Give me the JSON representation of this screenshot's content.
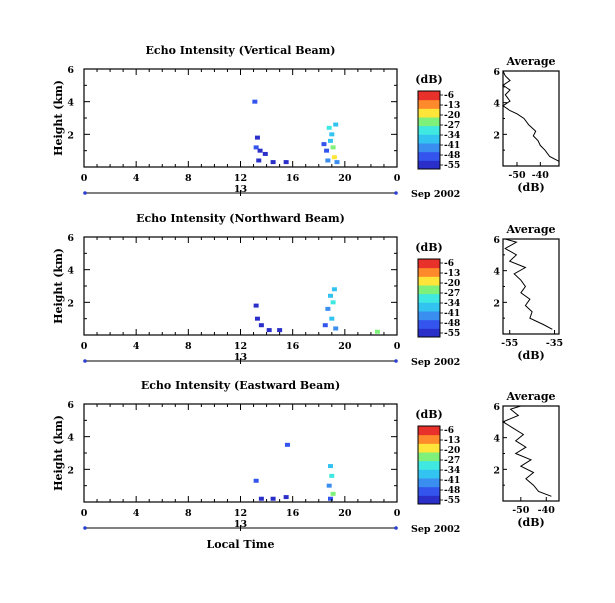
{
  "chart_data": [
    {
      "type": "heatmap",
      "title": "Echo Intensity (Vertical Beam)",
      "ylabel": "Height (km)",
      "xlabel": "",
      "xticks": [
        "0",
        "4",
        "8",
        "12",
        "16",
        "20",
        "0"
      ],
      "yticks": [
        "2",
        "4",
        "6"
      ],
      "ylim": [
        0,
        6
      ],
      "xlim": [
        0,
        24
      ],
      "date_tick": "13",
      "date_label": "Sep 2002",
      "colorbar_label": "(dB)",
      "colorbar_ticks": [
        "-6",
        "-13",
        "-20",
        "-27",
        "-34",
        "-41",
        "-48",
        "-55"
      ],
      "avg_title": "Average",
      "avg_xlabel": "(dB)",
      "avg_xticks": [
        "-50",
        "-40"
      ],
      "avg_yticks": [
        "2",
        "4",
        "6"
      ],
      "avg_xlim": [
        -56,
        -32
      ],
      "avg_profile": [
        [
          -32,
          0.3
        ],
        [
          -36,
          0.6
        ],
        [
          -38,
          1.0
        ],
        [
          -40,
          1.3
        ],
        [
          -41,
          1.6
        ],
        [
          -43,
          1.9
        ],
        [
          -42,
          2.2
        ],
        [
          -45,
          2.6
        ],
        [
          -47,
          3.0
        ],
        [
          -50,
          3.3
        ],
        [
          -53,
          3.5
        ],
        [
          -56,
          3.8
        ],
        [
          -53,
          4.1
        ],
        [
          -55,
          4.5
        ],
        [
          -53,
          4.8
        ],
        [
          -56,
          5.1
        ],
        [
          -53,
          5.4
        ],
        [
          -55,
          5.7
        ],
        [
          -56,
          6.0
        ]
      ],
      "echoes": [
        {
          "t": 13.2,
          "h": 1.2,
          "v": -48
        },
        {
          "t": 13.5,
          "h": 1.0,
          "v": -50
        },
        {
          "t": 13.9,
          "h": 0.8,
          "v": -52
        },
        {
          "t": 13.4,
          "h": 0.4,
          "v": -55
        },
        {
          "t": 14.5,
          "h": 0.3,
          "v": -50
        },
        {
          "t": 15.5,
          "h": 0.3,
          "v": -55
        },
        {
          "t": 13.1,
          "h": 4.0,
          "v": -48
        },
        {
          "t": 13.3,
          "h": 1.8,
          "v": -55
        },
        {
          "t": 18.8,
          "h": 2.4,
          "v": -30
        },
        {
          "t": 19.0,
          "h": 2.0,
          "v": -34
        },
        {
          "t": 18.9,
          "h": 1.6,
          "v": -38
        },
        {
          "t": 19.1,
          "h": 1.2,
          "v": -27
        },
        {
          "t": 18.6,
          "h": 1.0,
          "v": -45
        },
        {
          "t": 19.2,
          "h": 0.6,
          "v": -20
        },
        {
          "t": 18.7,
          "h": 0.4,
          "v": -41
        },
        {
          "t": 18.4,
          "h": 1.4,
          "v": -48
        },
        {
          "t": 19.3,
          "h": 2.6,
          "v": -34
        },
        {
          "t": 19.4,
          "h": 0.3,
          "v": -41
        }
      ]
    },
    {
      "type": "heatmap",
      "title": "Echo Intensity (Northward Beam)",
      "ylabel": "Height (km)",
      "xlabel": "",
      "xticks": [
        "0",
        "4",
        "8",
        "12",
        "16",
        "20",
        "0"
      ],
      "yticks": [
        "2",
        "4",
        "6"
      ],
      "ylim": [
        0,
        6
      ],
      "xlim": [
        0,
        24
      ],
      "date_tick": "13",
      "date_label": "Sep 2002",
      "colorbar_label": "(dB)",
      "colorbar_ticks": [
        "-6",
        "-13",
        "-20",
        "-27",
        "-34",
        "-41",
        "-48",
        "-55"
      ],
      "avg_title": "Average",
      "avg_xlabel": "(dB)",
      "avg_xticks": [
        "-55",
        "-35"
      ],
      "avg_yticks": [
        "2",
        "4",
        "6"
      ],
      "avg_xlim": [
        -58,
        -33
      ],
      "avg_profile": [
        [
          -36,
          0.3
        ],
        [
          -40,
          0.6
        ],
        [
          -46,
          1.0
        ],
        [
          -45,
          1.4
        ],
        [
          -48,
          1.8
        ],
        [
          -46,
          2.2
        ],
        [
          -50,
          2.6
        ],
        [
          -48,
          3.0
        ],
        [
          -50,
          3.4
        ],
        [
          -53,
          3.8
        ],
        [
          -48,
          4.2
        ],
        [
          -55,
          4.6
        ],
        [
          -52,
          5.0
        ],
        [
          -57,
          5.4
        ],
        [
          -52,
          5.8
        ],
        [
          -57,
          6.0
        ]
      ],
      "echoes": [
        {
          "t": 13.3,
          "h": 1.0,
          "v": -50
        },
        {
          "t": 13.6,
          "h": 0.6,
          "v": -52
        },
        {
          "t": 14.2,
          "h": 0.3,
          "v": -50
        },
        {
          "t": 15.0,
          "h": 0.3,
          "v": -55
        },
        {
          "t": 13.2,
          "h": 1.8,
          "v": -52
        },
        {
          "t": 18.9,
          "h": 2.4,
          "v": -34
        },
        {
          "t": 19.1,
          "h": 2.0,
          "v": -30
        },
        {
          "t": 18.7,
          "h": 1.6,
          "v": -41
        },
        {
          "t": 19.0,
          "h": 1.0,
          "v": -38
        },
        {
          "t": 18.5,
          "h": 0.6,
          "v": -45
        },
        {
          "t": 19.3,
          "h": 0.4,
          "v": -41
        },
        {
          "t": 19.2,
          "h": 2.8,
          "v": -34
        },
        {
          "t": 22.5,
          "h": 0.2,
          "v": -27
        }
      ]
    },
    {
      "type": "heatmap",
      "title": "Echo Intensity (Eastward Beam)",
      "ylabel": "Height (km)",
      "xlabel": "Local Time",
      "xticks": [
        "0",
        "4",
        "8",
        "12",
        "16",
        "20",
        "0"
      ],
      "yticks": [
        "2",
        "4",
        "6"
      ],
      "ylim": [
        0,
        6
      ],
      "xlim": [
        0,
        24
      ],
      "date_tick": "13",
      "date_label": "Sep 2002",
      "colorbar_label": "(dB)",
      "colorbar_ticks": [
        "-6",
        "-13",
        "-20",
        "-27",
        "-34",
        "-41",
        "-48",
        "-55"
      ],
      "avg_title": "Average",
      "avg_xlabel": "(dB)",
      "avg_xticks": [
        "-50",
        "-40"
      ],
      "avg_yticks": [
        "2",
        "4",
        "6"
      ],
      "avg_xlim": [
        -57,
        -35
      ],
      "avg_profile": [
        [
          -38,
          0.3
        ],
        [
          -43,
          0.6
        ],
        [
          -45,
          1.0
        ],
        [
          -48,
          1.4
        ],
        [
          -45,
          1.8
        ],
        [
          -50,
          2.2
        ],
        [
          -46,
          2.6
        ],
        [
          -52,
          3.0
        ],
        [
          -48,
          3.4
        ],
        [
          -52,
          3.8
        ],
        [
          -49,
          4.2
        ],
        [
          -53,
          4.6
        ],
        [
          -57,
          5.0
        ],
        [
          -51,
          5.4
        ],
        [
          -54,
          5.8
        ],
        [
          -50,
          6.0
        ]
      ],
      "echoes": [
        {
          "t": 13.6,
          "h": 0.2,
          "v": -50
        },
        {
          "t": 14.5,
          "h": 0.2,
          "v": -52
        },
        {
          "t": 15.5,
          "h": 0.3,
          "v": -50
        },
        {
          "t": 13.2,
          "h": 1.3,
          "v": -48
        },
        {
          "t": 15.6,
          "h": 3.5,
          "v": -48
        },
        {
          "t": 18.9,
          "h": 2.2,
          "v": -34
        },
        {
          "t": 19.0,
          "h": 1.6,
          "v": -30
        },
        {
          "t": 18.8,
          "h": 1.0,
          "v": -41
        },
        {
          "t": 19.1,
          "h": 0.5,
          "v": -27
        },
        {
          "t": 18.9,
          "h": 0.2,
          "v": -45
        }
      ]
    }
  ],
  "colors": {
    "colormap": [
      "#2b2fc9",
      "#3355ee",
      "#3a8eef",
      "#33c3f0",
      "#3fe8e0",
      "#7ff07a",
      "#ffe43a",
      "#ff8a2b",
      "#e8312a"
    ]
  }
}
